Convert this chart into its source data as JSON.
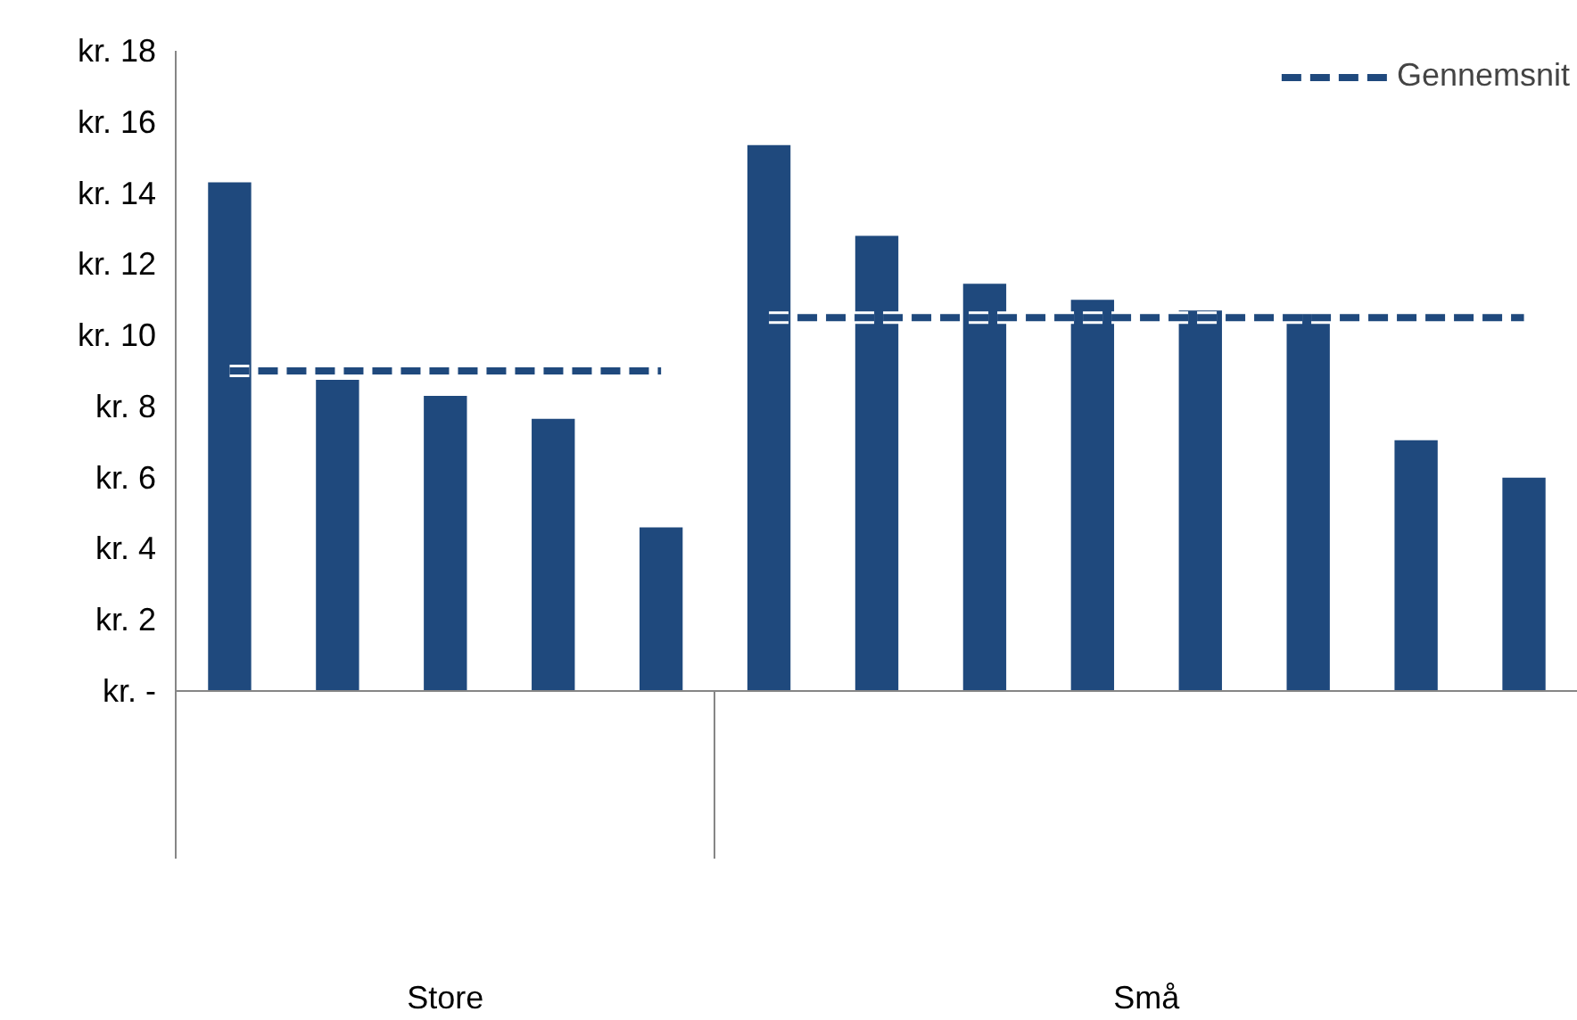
{
  "chart_data": {
    "type": "bar",
    "categories": [
      null,
      null,
      null,
      null,
      null,
      null,
      null,
      null,
      null,
      null,
      null,
      null,
      null
    ],
    "series": [
      {
        "color": "#1f497d",
        "values": [
          14.3,
          8.75,
          8.3,
          7.65,
          4.6,
          15.35,
          12.8,
          11.45,
          11.0,
          10.7,
          10.6,
          7.05,
          6.0
        ]
      },
      {
        "type": "line",
        "name": "Gennemsnit",
        "color": "#1f497d",
        "values": [
          9.0,
          9.0,
          9.0,
          9.0,
          9.0,
          null,
          null,
          null,
          null,
          null,
          null,
          null,
          null
        ]
      },
      {
        "type": "line",
        "color": "#1f497d",
        "values": [
          null,
          null,
          null,
          null,
          null,
          10.5,
          10.5,
          10.5,
          10.5,
          10.5,
          10.5,
          10.5,
          10.5
        ]
      }
    ],
    "annotations": [
      "Store",
      "Små"
    ],
    "ylim": [
      0,
      18
    ],
    "yticks": [
      {
        "value": 0,
        "label": "kr. -"
      },
      {
        "value": 2,
        "label": "kr. 2"
      },
      {
        "value": 4,
        "label": "kr. 4"
      },
      {
        "value": 6,
        "label": "kr. 6"
      },
      {
        "value": 8,
        "label": "kr. 8"
      },
      {
        "value": 10,
        "label": "kr. 10"
      },
      {
        "value": 12,
        "label": "kr. 12"
      },
      {
        "value": 14,
        "label": "kr. 14"
      },
      {
        "value": 16,
        "label": "kr. 16"
      },
      {
        "value": 18,
        "label": "kr. 18"
      }
    ],
    "line_style": "dashed",
    "grid": false,
    "legend": "top right"
  }
}
